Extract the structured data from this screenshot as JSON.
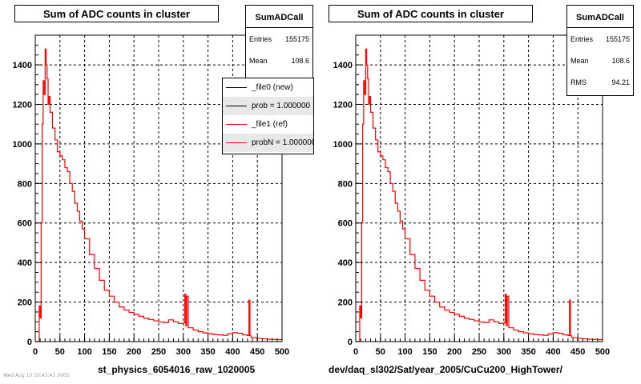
{
  "footer_date": "Wed Aug 10 10:43:41 2005",
  "panels": [
    {
      "title": "Sum of ADC counts in cluster",
      "xlabel": "st_physics_6054016_raw_1020005",
      "stats": {
        "name": "SumADCall",
        "rows": [
          {
            "label": "Entries",
            "value": "155175"
          },
          {
            "label": "Mean",
            "value": "108.6"
          }
        ]
      },
      "legend": [
        {
          "label": "_file0 (new)",
          "color": "#000000",
          "shaded": false
        },
        {
          "label": "prob = 1.000000",
          "color": "#000000",
          "shaded": true
        },
        {
          "label": "_file1 (ref)",
          "color": "#ff0000",
          "shaded": false
        },
        {
          "label": "probN = 1.000000",
          "color": "#ff0000",
          "shaded": true
        }
      ]
    },
    {
      "title": "Sum of ADC counts in cluster",
      "xlabel": "dev/daq_sl302/Sat/year_2005/CuCu200_HighTower/",
      "stats": {
        "name": "SumADCall",
        "rows": [
          {
            "label": "Entries",
            "value": "155175"
          },
          {
            "label": "Mean",
            "value": "108.6"
          },
          {
            "label": "RMS",
            "value": "94.21"
          }
        ]
      },
      "legend": []
    }
  ],
  "chart_data": [
    {
      "type": "line",
      "title": "Sum of ADC counts in cluster",
      "xlabel": "st_physics_6054016_raw_1020005",
      "ylabel": "",
      "xlim": [
        0,
        500
      ],
      "ylim": [
        0,
        1550
      ],
      "xticks": [
        0,
        50,
        100,
        150,
        200,
        250,
        300,
        350,
        400,
        450,
        500
      ],
      "yticks": [
        0,
        200,
        400,
        600,
        800,
        1000,
        1200,
        1400
      ],
      "grid": true,
      "line_color": "#ff0000",
      "series": [
        {
          "name": "_file1 (ref)",
          "x": [
            0,
            5,
            8,
            10,
            12,
            14,
            16,
            18,
            20,
            22,
            24,
            26,
            28,
            30,
            35,
            40,
            45,
            50,
            55,
            60,
            65,
            70,
            75,
            80,
            85,
            90,
            95,
            100,
            110,
            120,
            130,
            140,
            150,
            160,
            170,
            180,
            190,
            200,
            210,
            220,
            230,
            240,
            250,
            260,
            270,
            280,
            290,
            300,
            303,
            305,
            307,
            310,
            320,
            330,
            340,
            350,
            360,
            370,
            380,
            390,
            400,
            410,
            420,
            430,
            433,
            435,
            437,
            440,
            450,
            460,
            470,
            480,
            490,
            500
          ],
          "y": [
            0,
            0,
            180,
            120,
            600,
            1100,
            1320,
            1250,
            1480,
            1400,
            1330,
            1200,
            1240,
            1160,
            1080,
            1020,
            960,
            940,
            920,
            880,
            860,
            800,
            760,
            700,
            660,
            610,
            570,
            520,
            440,
            370,
            310,
            260,
            230,
            200,
            175,
            160,
            148,
            138,
            128,
            118,
            112,
            105,
            100,
            96,
            110,
            100,
            92,
            95,
            240,
            80,
            230,
            70,
            58,
            50,
            44,
            40,
            36,
            34,
            32,
            40,
            45,
            42,
            34,
            30,
            210,
            30,
            22,
            20,
            16,
            14,
            12,
            11,
            10,
            8
          ]
        }
      ]
    },
    {
      "type": "line",
      "title": "Sum of ADC counts in cluster",
      "xlabel": "dev/daq_sl302/Sat/year_2005/CuCu200_HighTower/",
      "ylabel": "",
      "xlim": [
        0,
        500
      ],
      "ylim": [
        0,
        1550
      ],
      "xticks": [
        0,
        50,
        100,
        150,
        200,
        250,
        300,
        350,
        400,
        450,
        500
      ],
      "yticks": [
        0,
        200,
        400,
        600,
        800,
        1000,
        1200,
        1400
      ],
      "grid": true,
      "line_color": "#ff0000",
      "series": [
        {
          "name": "",
          "x": [
            0,
            5,
            8,
            10,
            12,
            14,
            16,
            18,
            20,
            22,
            24,
            26,
            28,
            30,
            35,
            40,
            45,
            50,
            55,
            60,
            65,
            70,
            75,
            80,
            85,
            90,
            95,
            100,
            110,
            120,
            130,
            140,
            150,
            160,
            170,
            180,
            190,
            200,
            210,
            220,
            230,
            240,
            250,
            260,
            270,
            280,
            290,
            300,
            303,
            305,
            307,
            310,
            320,
            330,
            340,
            350,
            360,
            370,
            380,
            390,
            400,
            410,
            420,
            430,
            433,
            435,
            437,
            440,
            450,
            460,
            470,
            480,
            490,
            500
          ],
          "y": [
            0,
            0,
            180,
            120,
            600,
            1100,
            1320,
            1250,
            1480,
            1400,
            1330,
            1200,
            1240,
            1160,
            1080,
            1020,
            960,
            940,
            920,
            880,
            860,
            800,
            760,
            700,
            660,
            610,
            570,
            520,
            440,
            370,
            310,
            260,
            230,
            200,
            175,
            160,
            148,
            138,
            128,
            118,
            112,
            105,
            100,
            96,
            110,
            100,
            92,
            95,
            240,
            80,
            230,
            70,
            58,
            50,
            44,
            40,
            36,
            34,
            32,
            40,
            45,
            42,
            34,
            30,
            210,
            30,
            22,
            20,
            16,
            14,
            12,
            11,
            10,
            8
          ]
        }
      ]
    }
  ]
}
